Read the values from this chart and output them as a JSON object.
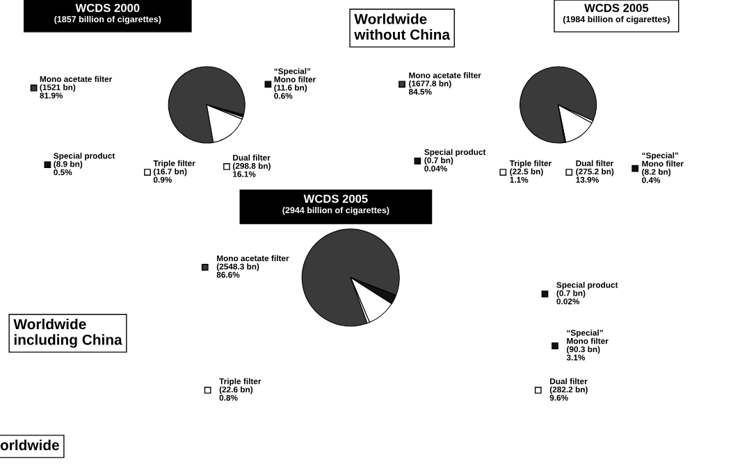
{
  "chart_data": [
    {
      "type": "pie",
      "title": "WCDS 2000",
      "subtitle": "(1857 billion of cigarettes)",
      "legend": "bottom",
      "categories": [
        "Mono acetate filter\n(1521 bn)",
        "“Special”\nMono filter\n(11.6 bn)",
        "Special product\n(8.9 bn)",
        "Triple filter\n(16.7 bn)",
        "Dual filter\n(298.8 bn)"
      ],
      "values": [
        81.9,
        0.6,
        0.5,
        0.9,
        16.1
      ],
      "value_labels": [
        "81.9%",
        "0.6%",
        "0.5%",
        "0.9%",
        "16.1%"
      ],
      "colors": [
        "#3a3a3a",
        "#111111",
        "#111111",
        "#ffffff",
        "#ffffff"
      ]
    },
    {
      "type": "pie",
      "title": "WCDS 2005",
      "subtitle": "(1984 billion of cigarettes)",
      "legend": "bottom",
      "categories": [
        "Mono acetate filter\n(1677.8 bn)",
        "Special product\n(0.7 bn)",
        "Triple filter\n(22.5 bn)",
        "Dual filter\n(275.2 bn)",
        "“Special”\nMono filter\n(8.2 bn)"
      ],
      "values": [
        84.5,
        0.04,
        1.1,
        13.9,
        0.4
      ],
      "value_labels": [
        "84.5%",
        "0.04%",
        "1.1%",
        "13.9%",
        "0.4%"
      ],
      "colors": [
        "#3a3a3a",
        "#111111",
        "#ffffff",
        "#ffffff",
        "#111111"
      ],
      "annotations": [
        "Worldwide\nwithout China"
      ]
    },
    {
      "type": "pie",
      "title": "WCDS 2005",
      "subtitle": "(2944 billion of cigarettes)",
      "legend": "bottom right",
      "categories": [
        "Mono acetate filter\n(2548.3 bn)",
        "Special product\n(0.7 bn)",
        "“Special”\nMono filter\n(90.3 bn)",
        "Dual filter\n(282.2 bn)",
        "Triple filter\n(22.6 bn)"
      ],
      "values": [
        86.6,
        0.02,
        3.1,
        9.6,
        0.8
      ],
      "value_labels": [
        "86.6%",
        "0.02%",
        "3.1%",
        "9.6%",
        "0.8%"
      ],
      "colors": [
        "#3a3a3a",
        "#111111",
        "#111111",
        "#ffffff",
        "#ffffff"
      ],
      "annotations": [
        "Worldwide\nincluding China",
        "orldwide"
      ]
    }
  ]
}
